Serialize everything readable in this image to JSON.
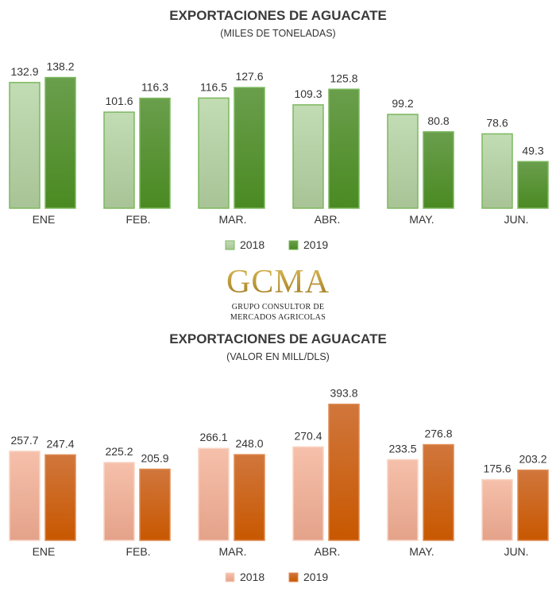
{
  "chart_data": [
    {
      "type": "bar",
      "title": "EXPORTACIONES DE AGUACATE",
      "subtitle": "(MILES DE TONELADAS)",
      "categories": [
        "ENE",
        "FEB.",
        "MAR.",
        "ABR.",
        "MAY.",
        "JUN."
      ],
      "series": [
        {
          "name": "2018",
          "values": [
            132.9,
            101.6,
            116.5,
            109.3,
            99.2,
            78.6
          ],
          "color": "#b9d6a9",
          "border": "#7cb85e"
        },
        {
          "name": "2019",
          "values": [
            138.2,
            116.3,
            127.6,
            125.8,
            80.8,
            49.3
          ],
          "color": "#4e8c28",
          "border": "#7cb85e"
        }
      ],
      "legend": "bottom"
    },
    {
      "type": "bar",
      "title": "EXPORTACIONES DE AGUACATE",
      "subtitle": "(VALOR EN MILL/DLS)",
      "categories": [
        "ENE",
        "FEB.",
        "MAR.",
        "ABR.",
        "MAY.",
        "JUN."
      ],
      "series": [
        {
          "name": "2018",
          "values": [
            257.7,
            225.2,
            266.1,
            270.4,
            233.5,
            175.6
          ],
          "color": "#f4bca6",
          "border": "#f8d4c4"
        },
        {
          "name": "2019",
          "values": [
            247.4,
            205.9,
            248.0,
            393.8,
            276.8,
            203.2
          ],
          "color": "#c85a10",
          "border": "#e08a50"
        }
      ],
      "legend": "bottom"
    }
  ],
  "logo": {
    "mark": "GCMA",
    "line1": "GRUPO CONSULTOR DE",
    "line2": "MERCADOS AGRICOLAS"
  }
}
